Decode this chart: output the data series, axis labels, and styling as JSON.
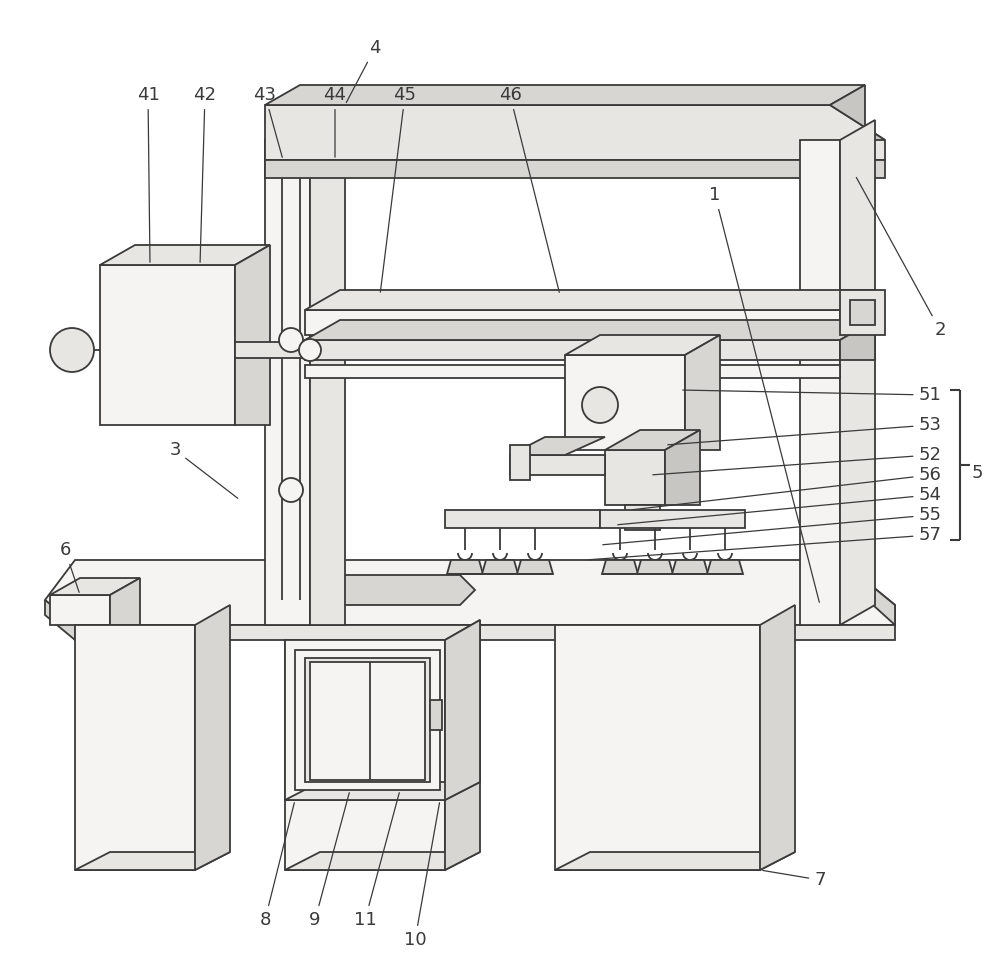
{
  "bg_color": "#ffffff",
  "line_color": "#3a3a3a",
  "lw": 1.3,
  "fill_light": "#e8e6e2",
  "fill_mid": "#d8d6d2",
  "fill_dark": "#c8c6c2",
  "fill_white": "#f5f4f2"
}
